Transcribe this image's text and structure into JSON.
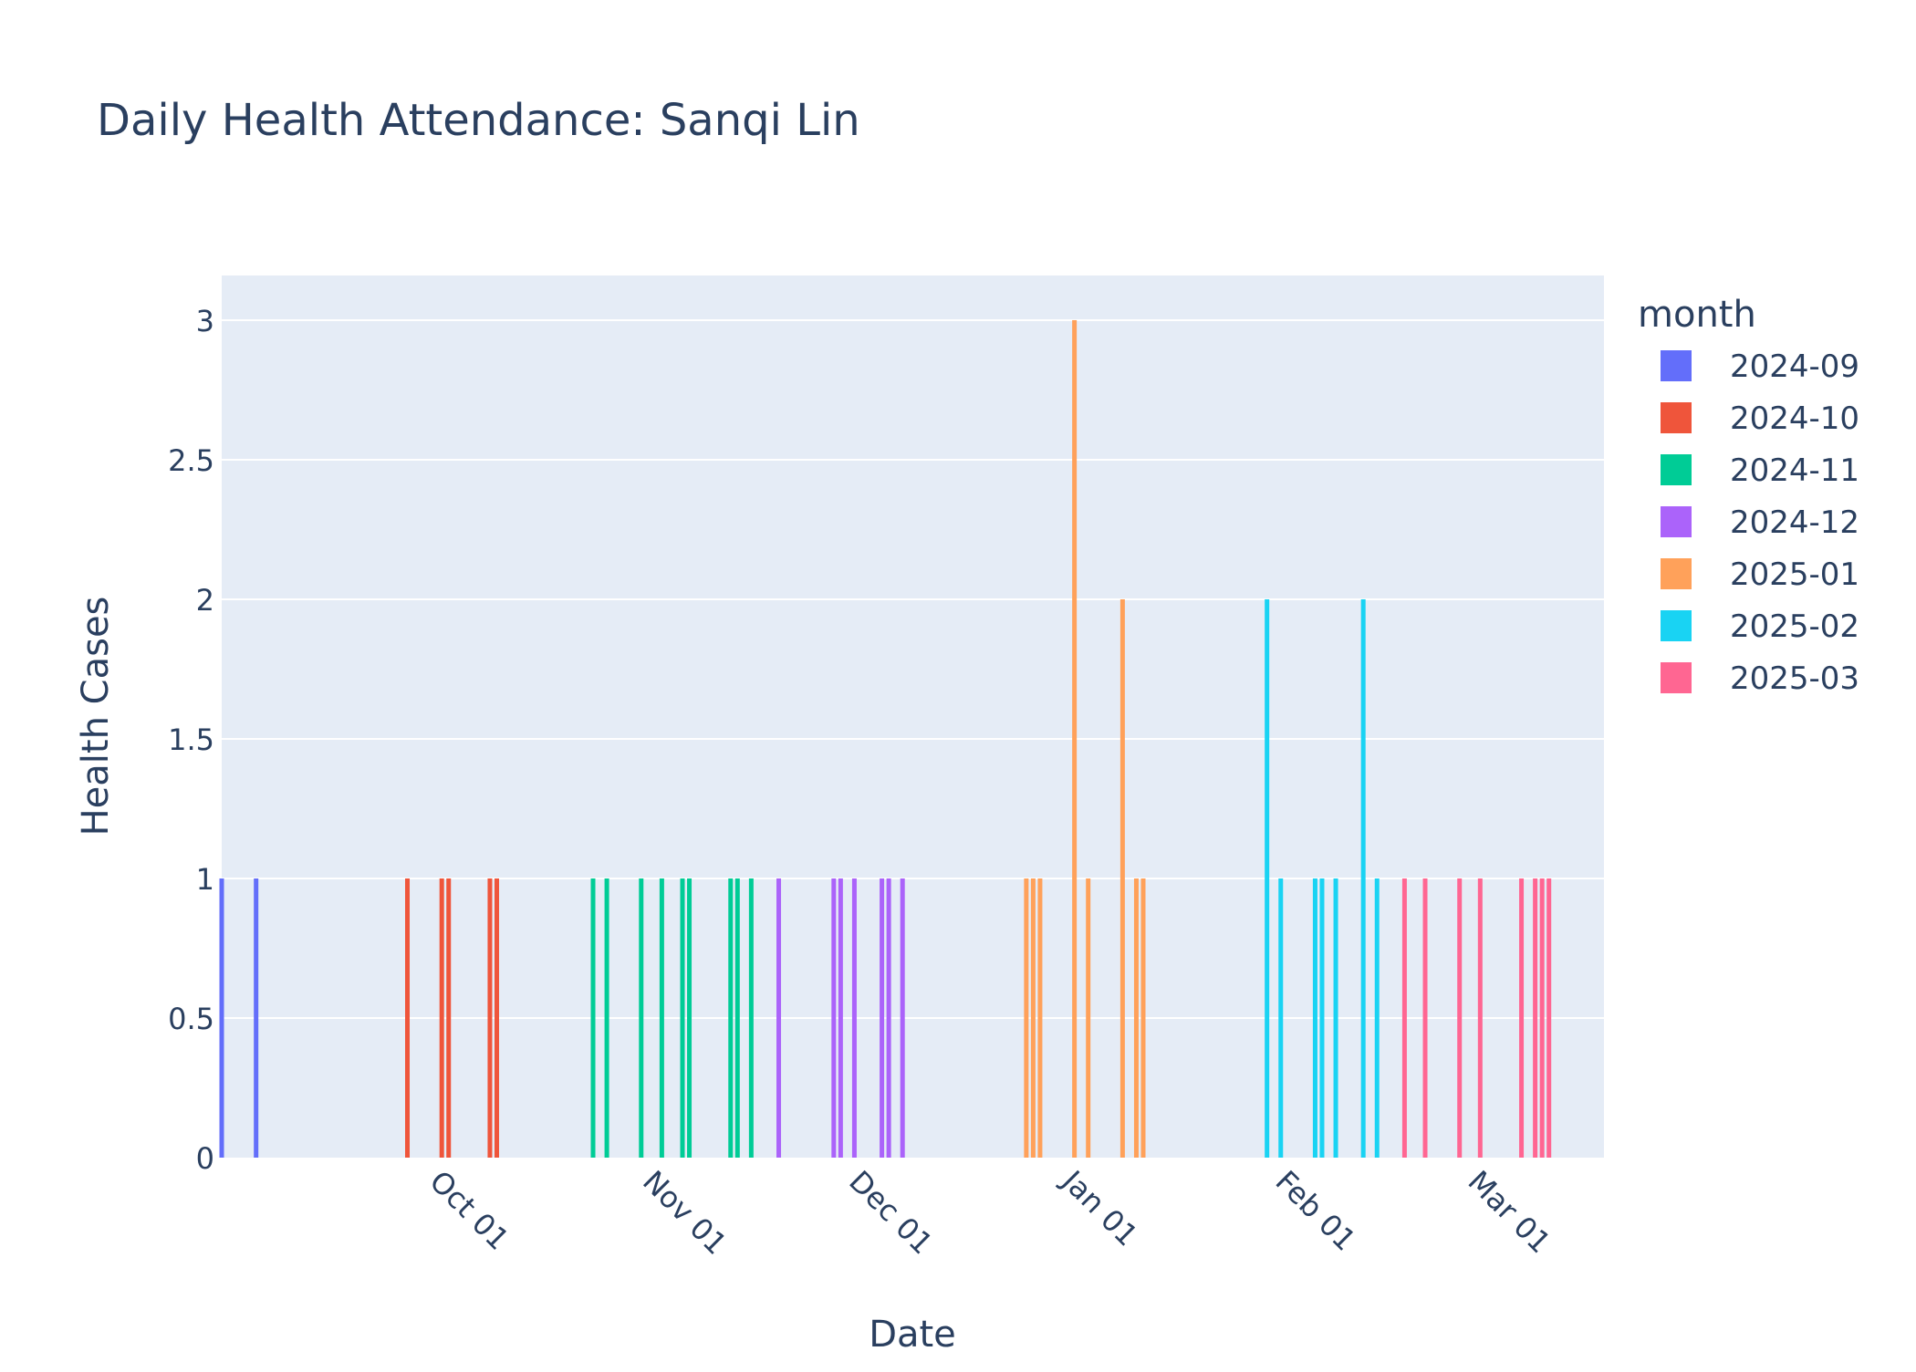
{
  "chart_data": {
    "type": "bar",
    "title": "Daily Health Attendance: Sanqi Lin",
    "xlabel": "Date",
    "ylabel": "Health Cases",
    "xlim": [
      "2024-09-01",
      "2025-03-21"
    ],
    "ylim": [
      0,
      3.16
    ],
    "yticks": [
      0,
      0.5,
      1,
      1.5,
      2,
      2.5,
      3
    ],
    "ytick_labels": [
      "0",
      "0.5",
      "1",
      "1.5",
      "2",
      "2.5",
      "3"
    ],
    "xticks": [
      "2024-10-01",
      "2024-11-01",
      "2024-12-01",
      "2025-01-01",
      "2025-02-01",
      "2025-03-01"
    ],
    "xtick_labels": [
      "Oct 01",
      "Nov 01",
      "Dec 01",
      "Jan 01",
      "Feb 01",
      "Mar 01"
    ],
    "grid": true,
    "legend_title": "month",
    "legend_position": "right",
    "series": [
      {
        "name": "2024-09",
        "color": "#636efa",
        "points": [
          [
            "2024-09-01",
            1
          ],
          [
            "2024-09-06",
            1
          ]
        ]
      },
      {
        "name": "2024-10",
        "color": "#EF553B",
        "points": [
          [
            "2024-09-28",
            1
          ],
          [
            "2024-10-03",
            1
          ],
          [
            "2024-10-04",
            1
          ],
          [
            "2024-10-10",
            1
          ],
          [
            "2024-10-11",
            1
          ]
        ]
      },
      {
        "name": "2024-11",
        "color": "#00cc96",
        "points": [
          [
            "2024-10-25",
            1
          ],
          [
            "2024-10-27",
            1
          ],
          [
            "2024-11-01",
            1
          ],
          [
            "2024-11-04",
            1
          ],
          [
            "2024-11-07",
            1
          ],
          [
            "2024-11-08",
            1
          ],
          [
            "2024-11-14",
            1
          ],
          [
            "2024-11-15",
            1
          ],
          [
            "2024-11-17",
            1
          ]
        ]
      },
      {
        "name": "2024-12",
        "color": "#ab63fa",
        "points": [
          [
            "2024-11-21",
            1
          ],
          [
            "2024-11-29",
            1
          ],
          [
            "2024-11-30",
            1
          ],
          [
            "2024-12-02",
            1
          ],
          [
            "2024-12-06",
            1
          ],
          [
            "2024-12-07",
            1
          ],
          [
            "2024-12-09",
            1
          ]
        ]
      },
      {
        "name": "2025-01",
        "color": "#FFA15A",
        "points": [
          [
            "2024-12-27",
            1
          ],
          [
            "2024-12-28",
            1
          ],
          [
            "2024-12-29",
            1
          ],
          [
            "2025-01-03",
            3
          ],
          [
            "2025-01-05",
            1
          ],
          [
            "2025-01-10",
            2
          ],
          [
            "2025-01-12",
            1
          ],
          [
            "2025-01-13",
            1
          ]
        ]
      },
      {
        "name": "2025-02",
        "color": "#19d3f3",
        "points": [
          [
            "2025-01-31",
            2
          ],
          [
            "2025-02-02",
            1
          ],
          [
            "2025-02-07",
            1
          ],
          [
            "2025-02-08",
            1
          ],
          [
            "2025-02-10",
            1
          ],
          [
            "2025-02-14",
            2
          ],
          [
            "2025-02-16",
            1
          ]
        ]
      },
      {
        "name": "2025-03",
        "color": "#FF6692",
        "points": [
          [
            "2025-02-20",
            1
          ],
          [
            "2025-02-23",
            1
          ],
          [
            "2025-02-28",
            1
          ],
          [
            "2025-03-03",
            1
          ],
          [
            "2025-03-09",
            1
          ],
          [
            "2025-03-11",
            1
          ],
          [
            "2025-03-12",
            1
          ],
          [
            "2025-03-13",
            1
          ]
        ]
      }
    ]
  }
}
